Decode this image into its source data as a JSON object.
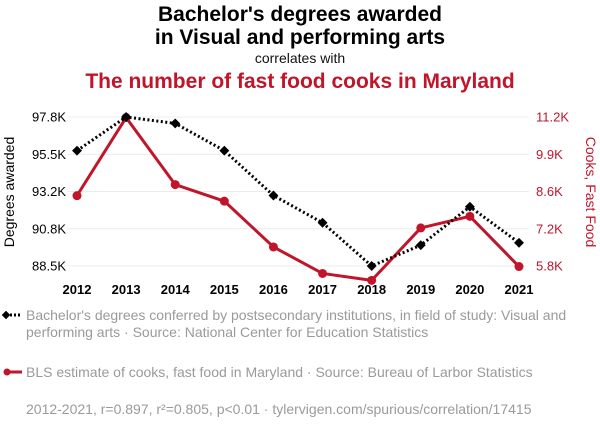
{
  "header": {
    "title_line1": "Bachelor's degrees awarded",
    "title_line2": "in Visual and performing arts",
    "connector": "correlates with",
    "title_red": "The number of fast food cooks in Maryland"
  },
  "chart_data": {
    "type": "line",
    "x": [
      "2012",
      "2013",
      "2014",
      "2015",
      "2016",
      "2017",
      "2018",
      "2019",
      "2020",
      "2021"
    ],
    "series": [
      {
        "name": "Bachelor's degrees conferred by postsecondary institutions, in field of study: Visual and performing arts · Source: National Center for Education Statistics",
        "axis": "left",
        "color": "#000000",
        "style": "dotted",
        "marker": "diamond",
        "values": [
          95700,
          97800,
          97400,
          95700,
          92900,
          91200,
          88500,
          89800,
          92200,
          89950
        ]
      },
      {
        "name": "BLS estimate of cooks, fast food in Maryland · Source: Bureau of Larbor Statistics",
        "axis": "right",
        "color": "#c0152a",
        "style": "solid",
        "marker": "circle",
        "values": [
          8350,
          11180,
          8750,
          8150,
          6490,
          5530,
          5280,
          7180,
          7600,
          5780
        ]
      }
    ],
    "ylabel_left": "Degrees awarded",
    "ylabel_right": "Cooks, Fast Food",
    "yticks_left": [
      "88.5K",
      "90.8K",
      "93.2K",
      "95.5K",
      "97.8K"
    ],
    "yticks_right": [
      "5.8K",
      "7.2K",
      "8.6K",
      "9.9K",
      "11.2K"
    ],
    "ylim_left": [
      88500,
      97800
    ],
    "ylim_right": [
      5800,
      11200
    ],
    "grid": true,
    "legend": "bottom"
  },
  "footer": {
    "stats": "2012-2021, r=0.897, r²=0.805, p<0.01 · tylervigen.com/spurious/correlation/17415"
  },
  "colors": {
    "red": "#c0152a",
    "black": "#000000",
    "grey_text": "#9a9a9a"
  }
}
